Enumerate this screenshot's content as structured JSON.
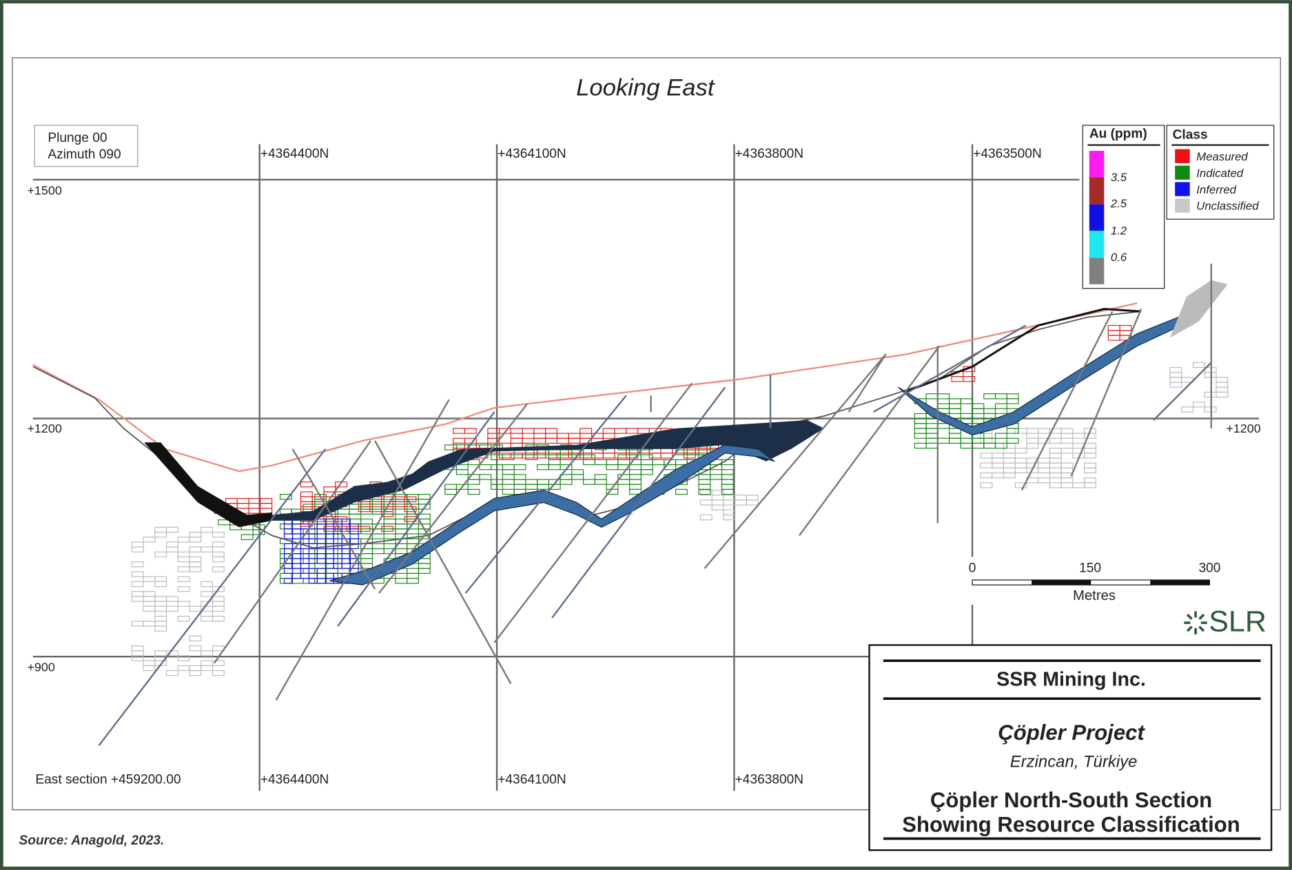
{
  "view": {
    "title": "Looking East",
    "orientation": [
      "Plunge 00",
      "Azimuth 090"
    ],
    "section": "East section +459200.00"
  },
  "northings": {
    "top": [
      "+4364400N",
      "+4364100N",
      "+4363800N",
      "+4363500N"
    ],
    "bottom": [
      "+4364400N",
      "+4364100N",
      "+4363800N"
    ]
  },
  "elevations": {
    "left": [
      "+1500",
      "+1200",
      "+900"
    ],
    "right": [
      "+1200"
    ]
  },
  "au_legend": {
    "title": "Au (ppm)",
    "labels": [
      "3.5",
      "2.5",
      "1.2",
      "0.6"
    ]
  },
  "class_legend": {
    "title": "Class",
    "items": [
      "Measured",
      "Indicated",
      "Inferred",
      "Unclassified"
    ]
  },
  "scale_bar": {
    "labels": [
      "0",
      "150",
      "300"
    ],
    "unit": "Metres"
  },
  "logo": "SLR",
  "title_block": {
    "company": "SSR Mining Inc.",
    "project": "Çöpler Project",
    "location": "Erzincan, Türkiye",
    "caption": [
      "Çöpler North-South Section",
      "Showing Resource Classification"
    ]
  },
  "source": "Source: Anagold, 2023."
}
